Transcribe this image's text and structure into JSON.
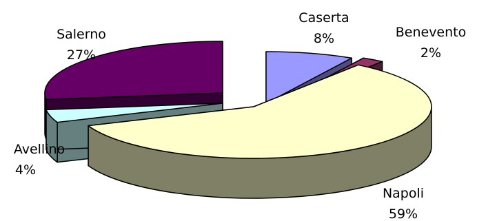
{
  "chart_data": {
    "type": "pie",
    "three_d": true,
    "exploded": true,
    "legend": "none",
    "title": "",
    "slices": [
      {
        "name": "Caserta",
        "percent": 8,
        "top_color": "#9999ff",
        "side_color": "#4d4d80"
      },
      {
        "name": "Benevento",
        "percent": 2,
        "top_color": "#993366",
        "side_color": "#4d1a33"
      },
      {
        "name": "Napoli",
        "percent": 59,
        "top_color": "#ffffcc",
        "side_color": "#808066"
      },
      {
        "name": "Avellino",
        "percent": 4,
        "top_color": "#ccffff",
        "side_color": "#668080"
      },
      {
        "name": "Salerno",
        "percent": 27,
        "top_color": "#660066",
        "side_color": "#330033"
      }
    ]
  }
}
